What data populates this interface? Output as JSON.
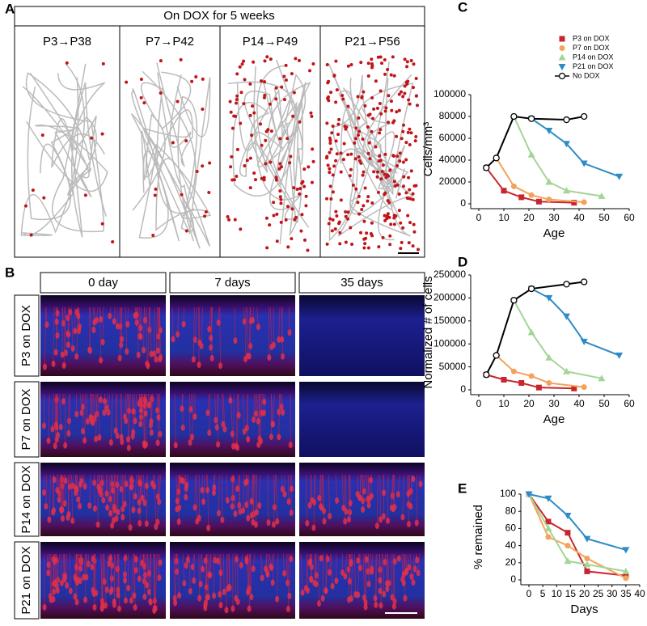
{
  "panel_a": {
    "label": "A",
    "header": "On DOX for 5 weeks",
    "columns": [
      "P3→P38",
      "P7→P42",
      "P14→P49",
      "P21→P56"
    ]
  },
  "panel_b": {
    "label": "B",
    "columns": [
      "0 day",
      "7 days",
      "35 days"
    ],
    "rows": [
      "P3 on DOX",
      "P7 on DOX",
      "P14 on DOX",
      "P21 on DOX"
    ]
  },
  "chart_data": [
    {
      "type": "line",
      "label": "C",
      "x_label": "Age",
      "y_label": "Cells/mm³",
      "legend": "top",
      "xlim": [
        0,
        60
      ],
      "xticks": [
        0,
        10,
        20,
        30,
        40,
        50,
        60
      ],
      "ylim": [
        0,
        100000
      ],
      "yticks": [
        0,
        20000,
        40000,
        60000,
        80000,
        100000
      ],
      "series": [
        {
          "name": "P3 on DOX",
          "color": "#c8262c",
          "marker": "square",
          "x": [
            3,
            10,
            17,
            24,
            38
          ],
          "values": [
            33000,
            12000,
            6000,
            2000,
            1000
          ]
        },
        {
          "name": "P7 on DOX",
          "color": "#f4a25a",
          "marker": "circle",
          "x": [
            7,
            14,
            21,
            28,
            42
          ],
          "values": [
            42000,
            16000,
            8000,
            4000,
            1500
          ]
        },
        {
          "name": "P14 on DOX",
          "color": "#a3d596",
          "marker": "triangle",
          "x": [
            14,
            21,
            28,
            35,
            49
          ],
          "values": [
            80000,
            45000,
            20000,
            12000,
            7000
          ]
        },
        {
          "name": "P21 on DOX",
          "color": "#2e8bc6",
          "marker": "triangle-down",
          "x": [
            21,
            28,
            35,
            42,
            56
          ],
          "values": [
            78000,
            67000,
            55000,
            37000,
            25000
          ]
        },
        {
          "name": "No DOX",
          "color": "#000000",
          "marker": "open-circle",
          "x": [
            3,
            7,
            14,
            21,
            35,
            42
          ],
          "values": [
            33000,
            42000,
            80000,
            78000,
            77000,
            80000
          ]
        }
      ]
    },
    {
      "type": "line",
      "label": "D",
      "x_label": "Age",
      "y_label": "Normalized # of cells",
      "xlim": [
        0,
        60
      ],
      "xticks": [
        0,
        10,
        20,
        30,
        40,
        50,
        60
      ],
      "ylim": [
        0,
        250000
      ],
      "yticks": [
        0,
        50000,
        100000,
        150000,
        200000,
        250000
      ],
      "series": [
        {
          "color": "#c8262c",
          "marker": "square",
          "x": [
            3,
            10,
            17,
            24,
            38
          ],
          "values": [
            33000,
            22000,
            15000,
            5000,
            3000
          ]
        },
        {
          "color": "#f4a25a",
          "marker": "circle",
          "x": [
            7,
            14,
            21,
            28,
            42
          ],
          "values": [
            75000,
            40000,
            30000,
            15000,
            6000
          ]
        },
        {
          "color": "#a3d596",
          "marker": "triangle",
          "x": [
            14,
            21,
            28,
            35,
            49
          ],
          "values": [
            195000,
            125000,
            70000,
            40000,
            25000
          ]
        },
        {
          "color": "#2e8bc6",
          "marker": "triangle-down",
          "x": [
            21,
            28,
            35,
            42,
            56
          ],
          "values": [
            220000,
            200000,
            160000,
            105000,
            75000
          ]
        },
        {
          "color": "#000000",
          "marker": "open-circle",
          "x": [
            3,
            7,
            14,
            21,
            35,
            42
          ],
          "values": [
            33000,
            75000,
            195000,
            220000,
            230000,
            235000
          ]
        }
      ]
    },
    {
      "type": "line",
      "label": "E",
      "x_label": "Days",
      "y_label": "% remained",
      "xlim": [
        0,
        40
      ],
      "xticks": [
        0,
        5,
        10,
        15,
        20,
        25,
        30,
        35,
        40
      ],
      "ylim": [
        0,
        100
      ],
      "yticks": [
        0,
        20,
        40,
        60,
        80,
        100
      ],
      "series": [
        {
          "color": "#c8262c",
          "marker": "square",
          "x": [
            0,
            7,
            14,
            21,
            35
          ],
          "values": [
            100,
            68,
            55,
            10,
            5
          ]
        },
        {
          "color": "#f4a25a",
          "marker": "circle",
          "x": [
            0,
            7,
            14,
            21,
            35
          ],
          "values": [
            100,
            50,
            40,
            25,
            2
          ]
        },
        {
          "color": "#a3d596",
          "marker": "triangle",
          "x": [
            0,
            7,
            14,
            21,
            35
          ],
          "values": [
            100,
            60,
            22,
            18,
            10
          ]
        },
        {
          "color": "#2e8bc6",
          "marker": "triangle-down",
          "x": [
            0,
            7,
            14,
            21,
            35
          ],
          "values": [
            100,
            95,
            75,
            48,
            35
          ]
        }
      ]
    }
  ]
}
